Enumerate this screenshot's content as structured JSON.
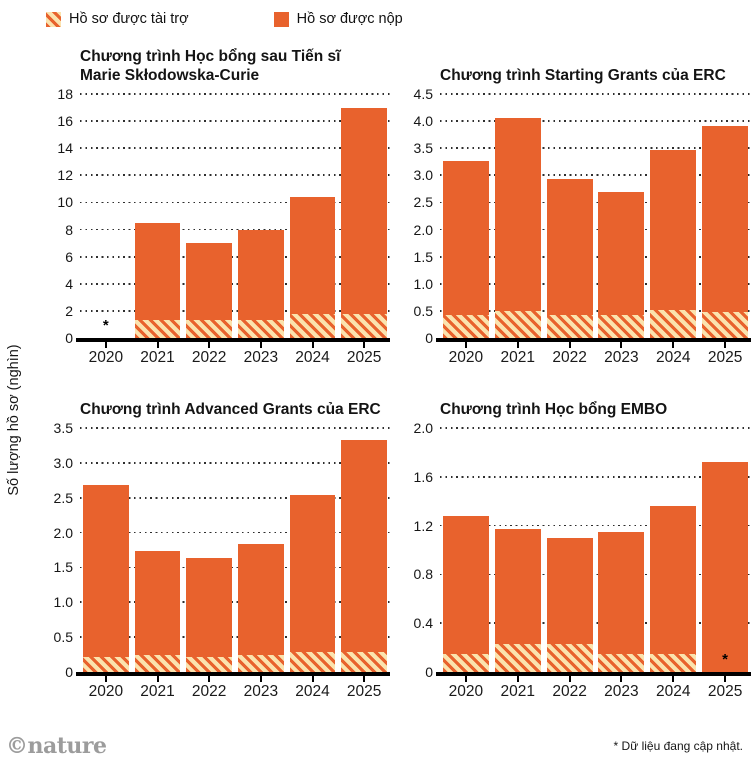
{
  "legend": {
    "funded_label": "Hồ sơ được tài trợ",
    "submitted_label": "Hồ sơ được nộp"
  },
  "ylabel": "Số lượng hồ sơ (nghìn)",
  "footer": {
    "credit": "©nature",
    "note": "* Dữ liệu đang cập nhật."
  },
  "colors": {
    "bar_orange": "#e8622d",
    "hatch_bg": "#fbe3ae",
    "axis": "#000000",
    "grid_dot": "#2e2e2e"
  },
  "chart_data": [
    {
      "type": "bar",
      "title": "Chương trình Học bổng sau Tiến sĩ Marie Skłodowska-Curie",
      "categories": [
        "2020",
        "2021",
        "2022",
        "2023",
        "2024",
        "2025"
      ],
      "ylim": [
        0,
        18
      ],
      "yticks": [
        {
          "value": 18,
          "label": "18"
        },
        {
          "value": 16,
          "label": "16"
        },
        {
          "value": 14,
          "label": "14"
        },
        {
          "value": 12,
          "label": "12"
        },
        {
          "value": 10,
          "label": "10"
        },
        {
          "value": 8,
          "label": "8"
        },
        {
          "value": 6,
          "label": "6"
        },
        {
          "value": 4,
          "label": "4"
        },
        {
          "value": 2,
          "label": "2"
        },
        {
          "value": 0,
          "label": "0"
        }
      ],
      "series": [
        {
          "name": "Hồ sơ được nộp",
          "values": [
            null,
            8.5,
            7.0,
            8.0,
            10.4,
            17.0
          ]
        },
        {
          "name": "Hồ sơ được tài trợ",
          "values": [
            null,
            1.3,
            1.3,
            1.3,
            1.75,
            1.75
          ]
        }
      ],
      "annotations": [
        {
          "slot": 0,
          "text": "*"
        }
      ],
      "grid": true,
      "legend_position": "top"
    },
    {
      "type": "bar",
      "title": "Chương trình Starting Grants của ERC",
      "categories": [
        "2020",
        "2021",
        "2022",
        "2023",
        "2024",
        "2025"
      ],
      "ylim": [
        0,
        4.5
      ],
      "yticks": [
        {
          "value": 4.5,
          "label": "4.5"
        },
        {
          "value": 4.0,
          "label": "4.0"
        },
        {
          "value": 3.5,
          "label": "3.5"
        },
        {
          "value": 3.0,
          "label": "3.0"
        },
        {
          "value": 2.5,
          "label": "2.5"
        },
        {
          "value": 2.0,
          "label": "2.0"
        },
        {
          "value": 1.5,
          "label": "1.5"
        },
        {
          "value": 1.0,
          "label": "1.0"
        },
        {
          "value": 0.5,
          "label": "0.5"
        },
        {
          "value": 0,
          "label": "0"
        }
      ],
      "series": [
        {
          "name": "Hồ sơ được nộp",
          "values": [
            3.27,
            4.05,
            2.93,
            2.69,
            3.46,
            3.91
          ]
        },
        {
          "name": "Hồ sơ được tài trợ",
          "values": [
            0.43,
            0.49,
            0.43,
            0.43,
            0.51,
            0.48
          ]
        }
      ],
      "annotations": [],
      "grid": true,
      "legend_position": "top"
    },
    {
      "type": "bar",
      "title": "Chương trình Advanced Grants của ERC",
      "categories": [
        "2020",
        "2021",
        "2022",
        "2023",
        "2024",
        "2025"
      ],
      "ylim": [
        0,
        3.5
      ],
      "yticks": [
        {
          "value": 3.5,
          "label": "3.5"
        },
        {
          "value": 3.0,
          "label": "3.0"
        },
        {
          "value": 2.5,
          "label": "2.5"
        },
        {
          "value": 2.0,
          "label": "2.0"
        },
        {
          "value": 1.5,
          "label": "1.5"
        },
        {
          "value": 1.0,
          "label": "1.0"
        },
        {
          "value": 0.5,
          "label": "0.5"
        },
        {
          "value": 0,
          "label": "0"
        }
      ],
      "series": [
        {
          "name": "Hồ sơ được nộp",
          "values": [
            2.68,
            1.74,
            1.64,
            1.83,
            2.54,
            3.33
          ]
        },
        {
          "name": "Hồ sơ được tài trợ",
          "values": [
            0.21,
            0.24,
            0.21,
            0.25,
            0.28,
            0.28
          ]
        }
      ],
      "annotations": [],
      "grid": true,
      "legend_position": "top"
    },
    {
      "type": "bar",
      "title": "Chương trình Học bổng EMBO",
      "categories": [
        "2020",
        "2021",
        "2022",
        "2023",
        "2024",
        "2025"
      ],
      "ylim": [
        0,
        2.0
      ],
      "yticks": [
        {
          "value": 2.0,
          "label": "2.0"
        },
        {
          "value": 1.6,
          "label": "1.6"
        },
        {
          "value": 1.2,
          "label": "1.2"
        },
        {
          "value": 0.8,
          "label": "0.8"
        },
        {
          "value": 0.4,
          "label": "0.4"
        },
        {
          "value": 0,
          "label": "0"
        }
      ],
      "series": [
        {
          "name": "Hồ sơ được nộp",
          "values": [
            1.28,
            1.17,
            1.1,
            1.15,
            1.36,
            1.72
          ]
        },
        {
          "name": "Hồ sơ được tài trợ",
          "values": [
            0.15,
            0.23,
            0.23,
            0.15,
            0.15,
            0
          ]
        }
      ],
      "annotations": [
        {
          "slot": 5,
          "text": "*"
        }
      ],
      "grid": true,
      "legend_position": "top"
    }
  ]
}
